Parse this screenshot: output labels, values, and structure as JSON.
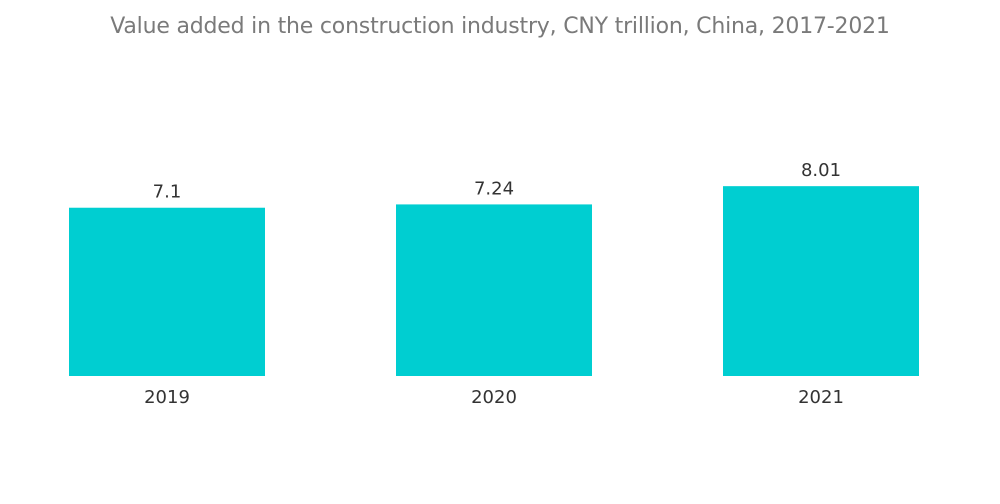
{
  "chart_data": {
    "type": "bar",
    "title": "Value added in the construction industry, CNY trillion, China, 2017-2021",
    "categories": [
      "2019",
      "2020",
      "2021"
    ],
    "values": [
      7.1,
      7.24,
      8.01
    ],
    "value_labels": [
      "7.1",
      "7.24",
      "8.01"
    ],
    "xlabel": "",
    "ylabel": "",
    "ylim": [
      0,
      8.5
    ],
    "grid": false,
    "legend": "none",
    "colors": {
      "bar": "#00CED1"
    }
  }
}
